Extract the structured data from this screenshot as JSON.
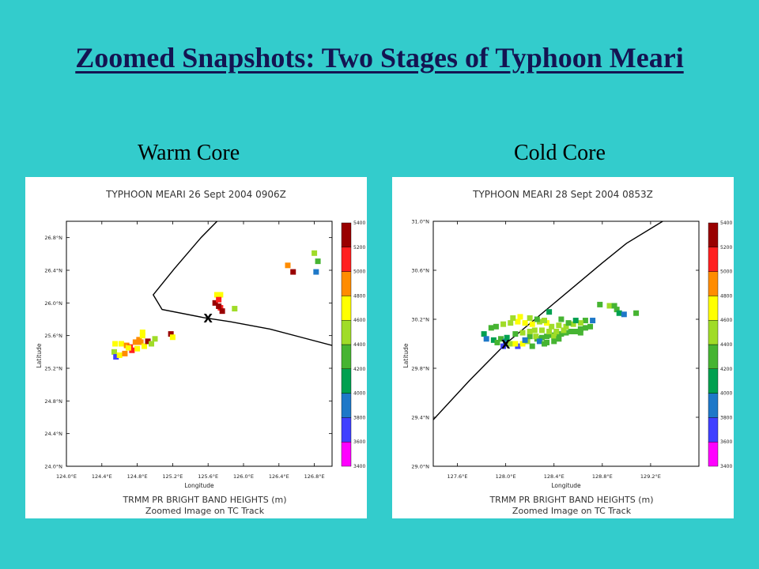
{
  "slide": {
    "title": "Zoomed Snapshots: Two Stages of Typhoon Meari",
    "left_label": "Warm Core",
    "right_label": "Cold Core"
  },
  "colorbar": {
    "levels": [
      3400,
      3600,
      3800,
      4000,
      4200,
      4400,
      4600,
      4800,
      5000,
      5200,
      5400
    ],
    "colors": [
      "#ff00ff",
      "#4040ff",
      "#1e78c8",
      "#00a050",
      "#46b432",
      "#a0dc28",
      "#ffff00",
      "#ff8c00",
      "#ff2020",
      "#990000"
    ]
  },
  "chart_data": [
    {
      "type": "scatter",
      "title": "TYPHOON MEARI 26 Sept 2004 0906Z",
      "xlabel": "Longitude",
      "ylabel": "Latitude",
      "footer1": "TRMM PR BRIGHT BAND HEIGHTS (m)",
      "footer2": "Zoomed Image on TC Track",
      "xlim": [
        124.0,
        127.0
      ],
      "ylim": [
        24.0,
        27.0
      ],
      "xticks": [
        124.0,
        124.4,
        124.8,
        125.2,
        125.6,
        126.0,
        126.4,
        126.8
      ],
      "xtick_labels": [
        "124.0°E",
        "124.4°E",
        "124.8°E",
        "125.2°E",
        "125.6°E",
        "126.0°E",
        "126.4°E",
        "126.8°E"
      ],
      "yticks": [
        24.0,
        24.4,
        24.8,
        25.2,
        25.6,
        26.0,
        26.4,
        26.8
      ],
      "ytick_labels": [
        "24.0°N",
        "24.4°N",
        "24.8°N",
        "25.2°N",
        "25.6°N",
        "26.0°N",
        "26.4°N",
        "26.8°N"
      ],
      "track": [
        [
          125.72,
          27.02
        ],
        [
          125.52,
          26.8
        ],
        [
          125.22,
          26.42
        ],
        [
          124.98,
          26.1
        ],
        [
          125.08,
          25.92
        ],
        [
          125.55,
          25.82
        ],
        [
          125.85,
          25.77
        ],
        [
          126.3,
          25.68
        ],
        [
          127.0,
          25.48
        ]
      ],
      "center_marker": {
        "label": "X",
        "lon": 125.6,
        "lat": 25.82
      },
      "points": [
        [
          124.55,
          25.5,
          4700
        ],
        [
          124.62,
          25.5,
          4750
        ],
        [
          124.68,
          25.48,
          4950
        ],
        [
          124.72,
          25.46,
          5100
        ],
        [
          124.78,
          25.52,
          4900
        ],
        [
          124.82,
          25.55,
          4800
        ],
        [
          124.86,
          25.6,
          4700
        ],
        [
          124.84,
          25.52,
          4850
        ],
        [
          124.88,
          25.47,
          4650
        ],
        [
          124.92,
          25.53,
          5250
        ],
        [
          124.96,
          25.5,
          4500
        ],
        [
          125.0,
          25.56,
          4400
        ],
        [
          124.74,
          25.42,
          5000
        ],
        [
          124.8,
          25.44,
          4600
        ],
        [
          124.54,
          25.4,
          4500
        ],
        [
          124.56,
          25.34,
          3700
        ],
        [
          124.6,
          25.36,
          4700
        ],
        [
          124.66,
          25.38,
          4800
        ],
        [
          124.7,
          25.45,
          4750
        ],
        [
          124.86,
          25.64,
          4750
        ],
        [
          125.18,
          25.62,
          5250
        ],
        [
          125.2,
          25.58,
          4750
        ],
        [
          125.7,
          26.1,
          4700
        ],
        [
          125.74,
          26.1,
          4750
        ],
        [
          125.68,
          26.0,
          5200
        ],
        [
          125.72,
          26.04,
          5000
        ],
        [
          125.74,
          25.94,
          5100
        ],
        [
          125.76,
          25.9,
          5300
        ],
        [
          125.72,
          25.96,
          5200
        ],
        [
          125.9,
          25.93,
          4500
        ],
        [
          126.5,
          26.46,
          4800
        ],
        [
          126.56,
          26.38,
          5450
        ],
        [
          126.8,
          26.61,
          4400
        ],
        [
          126.84,
          26.51,
          4300
        ],
        [
          126.82,
          26.38,
          3800
        ]
      ]
    },
    {
      "type": "scatter",
      "title": "TYPHOON MEARI 28 Sept 2004 0853Z",
      "xlabel": "Longitude",
      "ylabel": "Latitude",
      "footer1": "TRMM PR BRIGHT BAND HEIGHTS (m)",
      "footer2": "Zoomed Image on TC Track",
      "xlim": [
        127.4,
        129.6
      ],
      "ylim": [
        29.0,
        31.0
      ],
      "xticks": [
        127.6,
        128.0,
        128.4,
        128.8,
        129.2
      ],
      "xtick_labels": [
        "127.6°E",
        "128.0°E",
        "128.4°E",
        "128.8°E",
        "129.2°E"
      ],
      "yticks": [
        29.0,
        29.4,
        29.8,
        30.2,
        30.6,
        31.0
      ],
      "ytick_labels": [
        "29.0°N",
        "29.4°N",
        "29.8°N",
        "30.2°N",
        "30.6°N",
        "31.0°N"
      ],
      "track": [
        [
          127.4,
          29.38
        ],
        [
          127.7,
          29.7
        ],
        [
          128.0,
          30.0
        ],
        [
          128.4,
          30.33
        ],
        [
          128.8,
          30.66
        ],
        [
          129.0,
          30.82
        ],
        [
          129.3,
          31.0
        ]
      ],
      "center_marker": {
        "label": "X",
        "lon": 128.0,
        "lat": 30.0
      },
      "points": [
        [
          127.82,
          30.08,
          4100
        ],
        [
          127.84,
          30.04,
          3800
        ],
        [
          127.9,
          30.03,
          4000
        ],
        [
          127.96,
          30.04,
          4200
        ],
        [
          128.0,
          30.02,
          3800
        ],
        [
          127.98,
          29.98,
          3700
        ],
        [
          128.04,
          30.0,
          4400
        ],
        [
          128.1,
          29.98,
          3600
        ],
        [
          128.14,
          30.0,
          4600
        ],
        [
          128.18,
          30.02,
          4400
        ],
        [
          128.2,
          30.06,
          4300
        ],
        [
          128.26,
          30.04,
          4200
        ],
        [
          128.3,
          30.05,
          4300
        ],
        [
          128.34,
          30.06,
          4300
        ],
        [
          128.38,
          30.07,
          4300
        ],
        [
          128.42,
          30.08,
          4300
        ],
        [
          128.46,
          30.08,
          4200
        ],
        [
          128.5,
          30.09,
          4300
        ],
        [
          128.54,
          30.1,
          4200
        ],
        [
          128.58,
          30.1,
          4200
        ],
        [
          128.62,
          30.12,
          4200
        ],
        [
          128.66,
          30.13,
          4300
        ],
        [
          128.7,
          30.14,
          4200
        ],
        [
          128.72,
          30.19,
          3800
        ],
        [
          128.66,
          30.19,
          4200
        ],
        [
          128.62,
          30.17,
          4400
        ],
        [
          128.56,
          30.16,
          4500
        ],
        [
          128.5,
          30.14,
          4400
        ],
        [
          128.44,
          30.15,
          4500
        ],
        [
          128.38,
          30.14,
          4500
        ],
        [
          128.34,
          30.17,
          4600
        ],
        [
          128.28,
          30.18,
          4500
        ],
        [
          128.22,
          30.16,
          4600
        ],
        [
          128.16,
          30.17,
          4600
        ],
        [
          128.1,
          30.18,
          4600
        ],
        [
          128.04,
          30.17,
          4500
        ],
        [
          127.98,
          30.16,
          4400
        ],
        [
          127.92,
          30.14,
          4200
        ],
        [
          127.88,
          30.13,
          4300
        ],
        [
          128.06,
          30.21,
          4500
        ],
        [
          128.12,
          30.22,
          4600
        ],
        [
          128.2,
          30.21,
          4500
        ],
        [
          128.26,
          30.2,
          4300
        ],
        [
          128.32,
          30.19,
          4400
        ],
        [
          128.36,
          30.26,
          4000
        ],
        [
          128.46,
          30.2,
          4300
        ],
        [
          128.52,
          30.17,
          4200
        ],
        [
          128.58,
          30.19,
          4100
        ],
        [
          128.24,
          30.11,
          4400
        ],
        [
          128.3,
          30.11,
          4400
        ],
        [
          128.36,
          30.1,
          4400
        ],
        [
          128.42,
          30.1,
          4400
        ],
        [
          128.48,
          30.11,
          4400
        ],
        [
          128.14,
          30.09,
          4400
        ],
        [
          128.08,
          30.08,
          4200
        ],
        [
          128.2,
          30.1,
          4400
        ],
        [
          128.25,
          30.06,
          4400
        ],
        [
          128.4,
          30.06,
          4400
        ],
        [
          128.62,
          30.09,
          4300
        ],
        [
          128.34,
          30.01,
          4200
        ],
        [
          127.93,
          30.01,
          4300
        ],
        [
          128.01,
          30.05,
          4100
        ],
        [
          128.08,
          30.0,
          4600
        ],
        [
          128.16,
          30.03,
          3900
        ],
        [
          128.22,
          29.98,
          4300
        ],
        [
          128.28,
          30.02,
          3800
        ],
        [
          128.32,
          30.0,
          4200
        ],
        [
          128.4,
          30.02,
          4200
        ],
        [
          128.44,
          30.04,
          4200
        ],
        [
          128.78,
          30.32,
          4300
        ],
        [
          128.86,
          30.31,
          4400
        ],
        [
          128.9,
          30.31,
          4300
        ],
        [
          128.92,
          30.28,
          4200
        ],
        [
          128.94,
          30.25,
          4100
        ],
        [
          128.98,
          30.24,
          3800
        ],
        [
          129.08,
          30.25,
          4300
        ]
      ]
    }
  ]
}
